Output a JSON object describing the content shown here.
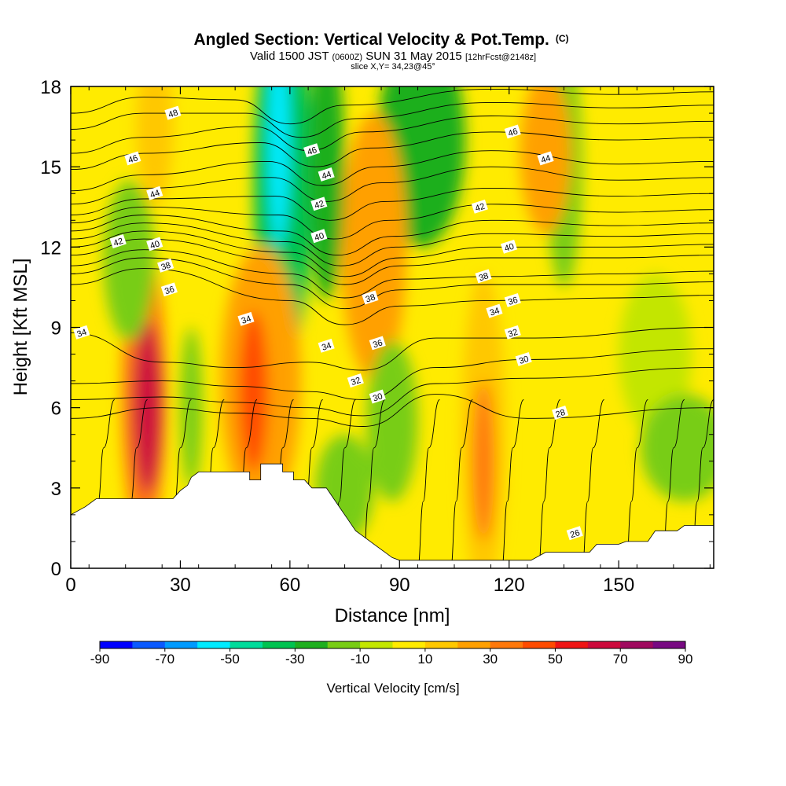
{
  "title": {
    "main": "Angled Section: Vertical Velocity & Pot.Temp.",
    "main_units": "(C)",
    "valid_line": {
      "lead": "Valid 1500 JST",
      "utc": "(0600Z)",
      "date": "SUN 31 May 2015",
      "forecast": "[12hrFcst@2148z]"
    },
    "slice": "slice X,Y= 34,23@45°"
  },
  "colorbar": {
    "label": "Vertical Velocity [cm/s]",
    "tick_labels": [
      "-90",
      "-70",
      "-50",
      "-30",
      "-10",
      "10",
      "30",
      "50",
      "70",
      "90"
    ],
    "levels": [
      -90,
      -80,
      -70,
      -60,
      -50,
      -40,
      -30,
      -20,
      -10,
      0,
      10,
      20,
      30,
      40,
      50,
      60,
      70,
      80,
      90
    ],
    "colors": [
      "#0000ff",
      "#0a5aff",
      "#009bff",
      "#00ebff",
      "#00dc9b",
      "#00c350",
      "#1eaf1e",
      "#78cd14",
      "#c3e600",
      "#ffeb00",
      "#ffc800",
      "#ffa000",
      "#ff780a",
      "#ff4b00",
      "#f01414",
      "#cd0a3c",
      "#a00a5f",
      "#780a82"
    ]
  },
  "chart_data": {
    "type": "heatmap",
    "subtype": "vertical cross-section with filled contours and isolines",
    "title": "Angled Section: Vertical Velocity & Pot.Temp. (C)",
    "xlabel": "Distance [nm]",
    "ylabel": "Height [Kft MSL]",
    "xlim": [
      0,
      176
    ],
    "ylim": [
      0,
      18
    ],
    "x_ticks": [
      0,
      30,
      60,
      90,
      120,
      150
    ],
    "y_ticks": [
      0,
      3,
      6,
      9,
      12,
      15,
      18
    ],
    "fill_field": "Vertical Velocity [cm/s]",
    "contour_field": "Pot.Temp. (C)",
    "terrain": [
      [
        0,
        2.0
      ],
      [
        4,
        2.3
      ],
      [
        7,
        2.6
      ],
      [
        28,
        2.6
      ],
      [
        30,
        2.9
      ],
      [
        32,
        3.1
      ],
      [
        33,
        3.4
      ],
      [
        35,
        3.6
      ],
      [
        49,
        3.6
      ],
      [
        49,
        3.3
      ],
      [
        52,
        3.3
      ],
      [
        52,
        3.9
      ],
      [
        58,
        3.9
      ],
      [
        58,
        3.6
      ],
      [
        61,
        3.6
      ],
      [
        61,
        3.3
      ],
      [
        64,
        3.3
      ],
      [
        66,
        3.0
      ],
      [
        70,
        3.0
      ],
      [
        72,
        2.6
      ],
      [
        74,
        2.2
      ],
      [
        76,
        1.8
      ],
      [
        78,
        1.4
      ],
      [
        80,
        1.2
      ],
      [
        82,
        1.0
      ],
      [
        84,
        0.8
      ],
      [
        86,
        0.6
      ],
      [
        88,
        0.4
      ],
      [
        90,
        0.3
      ],
      [
        126,
        0.3
      ],
      [
        130,
        0.6
      ],
      [
        142,
        0.6
      ],
      [
        144,
        0.9
      ],
      [
        150,
        0.9
      ],
      [
        152,
        1.0
      ],
      [
        158,
        1.0
      ],
      [
        160,
        1.4
      ],
      [
        166,
        1.4
      ],
      [
        168,
        1.6
      ],
      [
        176,
        1.6
      ]
    ],
    "velocity_blobs": [
      {
        "x": 21,
        "y": 6.0,
        "rx": 4,
        "ry": 3.2,
        "value": 60
      },
      {
        "x": 20,
        "y": 6.5,
        "rx": 6,
        "ry": 5.5,
        "value": 30
      },
      {
        "x": 50,
        "y": 6.6,
        "rx": 4,
        "ry": 3.0,
        "value": 45
      },
      {
        "x": 52,
        "y": 7.0,
        "rx": 11,
        "ry": 5.0,
        "value": 25
      },
      {
        "x": 113,
        "y": 4.0,
        "rx": 3,
        "ry": 3.0,
        "value": 35
      },
      {
        "x": 113,
        "y": 5.0,
        "rx": 6,
        "ry": 6.0,
        "value": 15
      },
      {
        "x": 83,
        "y": 12.0,
        "rx": 9,
        "ry": 5.0,
        "value": 25
      },
      {
        "x": 130,
        "y": 15.5,
        "rx": 7,
        "ry": 3.0,
        "value": 22
      },
      {
        "x": 23,
        "y": 16.5,
        "rx": 5,
        "ry": 3.0,
        "value": 15
      },
      {
        "x": 57,
        "y": 16.0,
        "rx": 3,
        "ry": 4.0,
        "value": -60
      },
      {
        "x": 58,
        "y": 14.5,
        "rx": 8,
        "ry": 7.0,
        "value": -35
      },
      {
        "x": 70,
        "y": 15.0,
        "rx": 5,
        "ry": 5.0,
        "value": -25
      },
      {
        "x": 96,
        "y": 16.0,
        "rx": 12,
        "ry": 4.0,
        "value": -22
      },
      {
        "x": 16,
        "y": 11.5,
        "rx": 7,
        "ry": 3.0,
        "value": -18
      },
      {
        "x": 135,
        "y": 15.0,
        "rx": 5,
        "ry": 4.5,
        "value": -15
      },
      {
        "x": 33,
        "y": 6.0,
        "rx": 3,
        "ry": 3.0,
        "value": -15
      },
      {
        "x": 88,
        "y": 5.5,
        "rx": 7,
        "ry": 3.0,
        "value": -12
      },
      {
        "x": 168,
        "y": 4.5,
        "rx": 12,
        "ry": 2.0,
        "value": -20
      },
      {
        "x": 75,
        "y": 3.0,
        "rx": 8,
        "ry": 2.0,
        "value": -12
      },
      {
        "x": 160,
        "y": 8.0,
        "rx": 10,
        "ry": 3.0,
        "value": -8
      }
    ],
    "isentropes_upper": [
      {
        "label": "48",
        "y0": 17.0,
        "x1": 45,
        "y1": 17.5,
        "y2": 17.9,
        "y3": 17.7
      },
      {
        "y0": 16.4,
        "x1": 48,
        "y1": 17.0,
        "y2": 17.4,
        "y3": 17.2
      },
      {
        "label": "46",
        "y0": 15.5,
        "x1": 50,
        "y1": 16.5,
        "y2": 16.9,
        "y3": 16.6
      },
      {
        "y0": 14.9,
        "x1": 52,
        "y1": 15.9,
        "y2": 16.3,
        "y3": 16.0
      },
      {
        "label": "44",
        "y0": 14.1,
        "x1": 54,
        "y1": 15.2,
        "y2": 15.6,
        "y3": 15.1
      },
      {
        "y0": 13.6,
        "x1": 55,
        "y1": 14.6,
        "y2": 15.0,
        "y3": 14.5
      },
      {
        "y0": 13.2,
        "x1": 56,
        "y1": 13.9,
        "y2": 14.2,
        "y3": 13.9
      },
      {
        "y0": 12.9,
        "x1": 57,
        "y1": 13.2,
        "y2": 13.6,
        "y3": 13.3
      },
      {
        "label": "42",
        "y0": 12.6,
        "x1": 58,
        "y1": 12.6,
        "y2": 13.0,
        "y3": 12.8
      },
      {
        "y0": 12.3,
        "x1": 59,
        "y1": 12.2,
        "y2": 12.5,
        "y3": 12.4
      },
      {
        "label": "40",
        "y0": 12.0,
        "x1": 60,
        "y1": 11.8,
        "y2": 12.0,
        "y3": 12.0
      },
      {
        "y0": 11.7,
        "x1": 60,
        "y1": 11.5,
        "y2": 11.6,
        "y3": 11.6
      },
      {
        "label": "38",
        "y0": 11.3,
        "x1": 60,
        "y1": 11.0,
        "y2": 10.9,
        "y3": 11.0
      },
      {
        "y0": 11.0,
        "x1": 60,
        "y1": 10.6,
        "y2": 10.6,
        "y3": 10.6
      },
      {
        "label": "36",
        "y0": 10.6,
        "x1": 60,
        "y1": 10.0,
        "y2": 10.0,
        "y3": 10.1
      }
    ],
    "isentropes_lower": [
      {
        "label": "34",
        "y0": 8.8,
        "y_mid": 7.5,
        "y_dip": 8.0,
        "y_end": 9.0
      },
      {
        "label": "32",
        "y0": 6.9,
        "y_mid": 6.8,
        "y_dip": 6.9,
        "y_end": 8.2
      },
      {
        "label": "30",
        "y0": 6.3,
        "y_mid": 6.2,
        "y_dip": 6.3,
        "y_end": 7.5
      },
      {
        "label": "28",
        "y0": 5.6,
        "y_mid": 5.8,
        "y_dip": 5.9,
        "y_end": 6.0
      }
    ],
    "isentrope_labels": [
      {
        "x": 28,
        "y": 17.0,
        "text": "48"
      },
      {
        "x": 17,
        "y": 15.3,
        "text": "46"
      },
      {
        "x": 23,
        "y": 14.0,
        "text": "44"
      },
      {
        "x": 13,
        "y": 12.2,
        "text": "42"
      },
      {
        "x": 23,
        "y": 12.1,
        "text": "40"
      },
      {
        "x": 26,
        "y": 11.3,
        "text": "38"
      },
      {
        "x": 27,
        "y": 10.4,
        "text": "36"
      },
      {
        "x": 3,
        "y": 8.8,
        "text": "34"
      },
      {
        "x": 66,
        "y": 15.6,
        "text": "46"
      },
      {
        "x": 70,
        "y": 14.7,
        "text": "44"
      },
      {
        "x": 68,
        "y": 13.6,
        "text": "42"
      },
      {
        "x": 68,
        "y": 12.4,
        "text": "40"
      },
      {
        "x": 82,
        "y": 10.1,
        "text": "38"
      },
      {
        "x": 48,
        "y": 9.3,
        "text": "34"
      },
      {
        "x": 70,
        "y": 8.3,
        "text": "34"
      },
      {
        "x": 84,
        "y": 8.4,
        "text": "36"
      },
      {
        "x": 78,
        "y": 7.0,
        "text": "32"
      },
      {
        "x": 84,
        "y": 6.4,
        "text": "30"
      },
      {
        "x": 121,
        "y": 16.3,
        "text": "46"
      },
      {
        "x": 130,
        "y": 15.3,
        "text": "44"
      },
      {
        "x": 112,
        "y": 13.5,
        "text": "42"
      },
      {
        "x": 120,
        "y": 12.0,
        "text": "40"
      },
      {
        "x": 113,
        "y": 10.9,
        "text": "38"
      },
      {
        "x": 121,
        "y": 10.0,
        "text": "36"
      },
      {
        "x": 116,
        "y": 9.6,
        "text": "34"
      },
      {
        "x": 121,
        "y": 8.8,
        "text": "32"
      },
      {
        "x": 124,
        "y": 7.8,
        "text": "30"
      },
      {
        "x": 134,
        "y": 5.8,
        "text": "28"
      },
      {
        "x": 138,
        "y": 1.3,
        "text": "26"
      }
    ]
  }
}
